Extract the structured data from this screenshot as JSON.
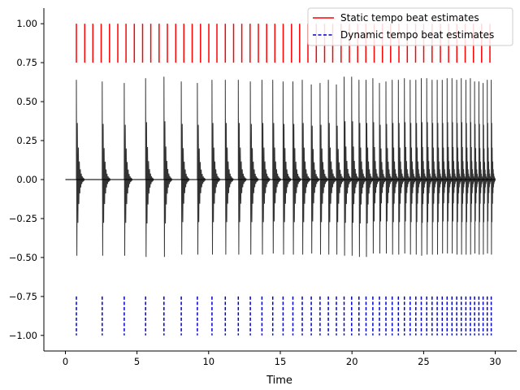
{
  "chart_data": {
    "type": "line",
    "xlabel": "Time",
    "ylabel": "",
    "xlim": [
      -1.5,
      31.5
    ],
    "ylim": [
      -1.1,
      1.1
    ],
    "x_ticks": [
      0,
      5,
      10,
      15,
      20,
      25,
      30
    ],
    "y_ticks": [
      -1.0,
      -0.75,
      -0.5,
      -0.25,
      0.0,
      0.25,
      0.5,
      0.75,
      1.0
    ],
    "x_tick_labels": [
      "0",
      "5",
      "10",
      "15",
      "20",
      "25",
      "30"
    ],
    "y_tick_labels": [
      "−1.00",
      "−0.75",
      "−0.50",
      "−0.25",
      "0.00",
      "0.25",
      "0.50",
      "0.75",
      "1.00"
    ],
    "grid": false,
    "legend_position": "top-right",
    "series": [
      {
        "name": "Static tempo beat estimates",
        "kind": "vlines",
        "color": "#ff0000",
        "linestyle": "solid",
        "ymin": 0.75,
        "ymax": 1.0,
        "x": [
          0.77,
          1.35,
          1.92,
          2.5,
          3.08,
          3.66,
          4.23,
          4.81,
          5.39,
          5.96,
          6.54,
          7.12,
          7.7,
          8.27,
          8.85,
          9.43,
          10.01,
          10.58,
          11.16,
          11.74,
          12.31,
          12.89,
          13.47,
          14.05,
          14.62,
          15.2,
          15.78,
          16.35,
          16.93,
          17.51,
          18.09,
          18.66,
          19.24,
          19.82,
          20.4,
          20.97,
          21.55,
          22.13,
          22.7,
          23.28,
          23.86,
          24.44,
          25.01,
          25.59,
          26.17,
          26.74,
          27.32,
          27.9,
          28.48,
          29.05,
          29.63
        ]
      },
      {
        "name": "Dynamic tempo beat estimates",
        "kind": "vlines",
        "color": "#0000cc",
        "linestyle": "dashed",
        "ymin": -1.0,
        "ymax": -0.75,
        "x": [
          0.77,
          2.57,
          4.11,
          5.6,
          6.88,
          8.09,
          9.21,
          10.23,
          11.16,
          12.07,
          12.91,
          13.72,
          14.47,
          15.19,
          15.88,
          16.53,
          17.16,
          17.77,
          18.35,
          18.91,
          19.45,
          19.98,
          20.49,
          20.98,
          21.46,
          21.92,
          22.37,
          22.81,
          23.24,
          23.66,
          24.06,
          24.46,
          24.84,
          25.22,
          25.59,
          25.95,
          26.3,
          26.64,
          26.98,
          27.31,
          27.63,
          27.95,
          28.26,
          28.56,
          28.86,
          29.15,
          29.44,
          29.72
        ]
      },
      {
        "name": "",
        "kind": "waveform",
        "color": "#000000",
        "x_start": 0.0,
        "x_end": 30.0,
        "onsets": [
          0.77,
          2.57,
          4.11,
          5.6,
          6.88,
          8.09,
          9.21,
          10.23,
          11.16,
          12.07,
          12.91,
          13.72,
          14.47,
          15.19,
          15.88,
          16.53,
          17.16,
          17.77,
          18.35,
          18.91,
          19.45,
          19.98,
          20.49,
          20.98,
          21.46,
          21.92,
          22.37,
          22.81,
          23.24,
          23.66,
          24.06,
          24.46,
          24.84,
          25.22,
          25.59,
          25.95,
          26.3,
          26.64,
          26.98,
          27.31,
          27.63,
          27.95,
          28.26,
          28.56,
          28.86,
          29.15,
          29.44,
          29.72
        ],
        "peak_pos": [
          0.64,
          0.63,
          0.62,
          0.65,
          0.66,
          0.63,
          0.62,
          0.64,
          0.64,
          0.64,
          0.63,
          0.64,
          0.64,
          0.63,
          0.63,
          0.64,
          0.61,
          0.62,
          0.64,
          0.61,
          0.66,
          0.66,
          0.64,
          0.64,
          0.65,
          0.62,
          0.63,
          0.64,
          0.64,
          0.65,
          0.64,
          0.64,
          0.65,
          0.65,
          0.64,
          0.64,
          0.64,
          0.65,
          0.65,
          0.64,
          0.65,
          0.64,
          0.65,
          0.63,
          0.63,
          0.62,
          0.64,
          0.64
        ],
        "peak_neg": [
          -0.65,
          -0.65,
          -0.65,
          -0.66,
          -0.66,
          -0.64,
          -0.64,
          -0.64,
          -0.64,
          -0.64,
          -0.64,
          -0.64,
          -0.63,
          -0.64,
          -0.64,
          -0.64,
          -0.63,
          -0.64,
          -0.64,
          -0.64,
          -0.65,
          -0.65,
          -0.66,
          -0.66,
          -0.63,
          -0.63,
          -0.63,
          -0.64,
          -0.64,
          -0.63,
          -0.64,
          -0.64,
          -0.65,
          -0.64,
          -0.64,
          -0.64,
          -0.63,
          -0.63,
          -0.63,
          -0.64,
          -0.64,
          -0.64,
          -0.64,
          -0.63,
          -0.64,
          -0.64,
          -0.63,
          -0.64
        ]
      }
    ]
  },
  "legend": {
    "items": [
      {
        "label": "Static tempo beat estimates",
        "color": "#ff0000",
        "linestyle": "solid"
      },
      {
        "label": "Dynamic tempo beat estimates",
        "color": "#0000cc",
        "linestyle": "dashed"
      }
    ]
  }
}
